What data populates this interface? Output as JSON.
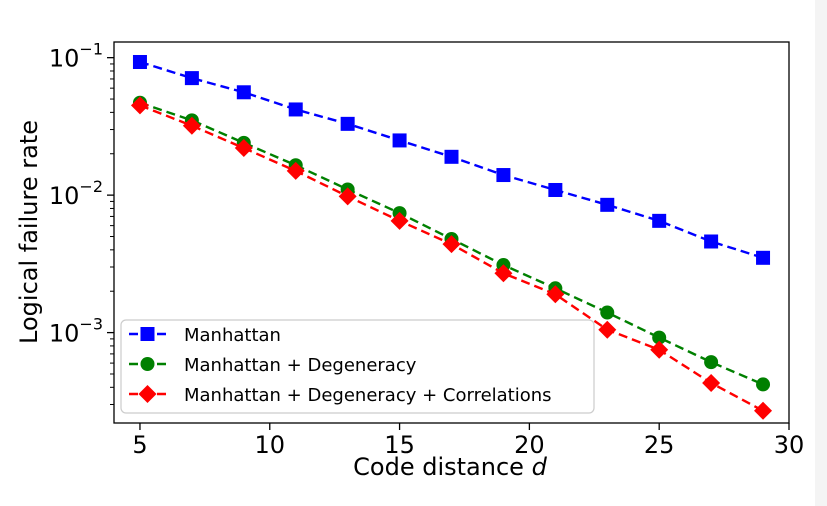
{
  "chart_data": {
    "type": "line",
    "xlabel": "Code distance",
    "xlabel_var": "d",
    "ylabel": "Logical failure rate",
    "xlim": [
      4,
      30
    ],
    "ylim": [
      0.00022,
      0.13
    ],
    "yscale": "log",
    "x_ticks": [
      5,
      10,
      15,
      20,
      25,
      30
    ],
    "y_ticks": [
      {
        "value": 0.001,
        "base": "10",
        "exp": "−3"
      },
      {
        "value": 0.01,
        "base": "10",
        "exp": "−2"
      },
      {
        "value": 0.1,
        "base": "10",
        "exp": "−1"
      }
    ],
    "grid": false,
    "legend_position": "lower-left",
    "x": [
      5,
      7,
      9,
      11,
      13,
      15,
      17,
      19,
      21,
      23,
      25,
      27,
      29
    ],
    "series": [
      {
        "name": "Manhattan",
        "color": "#0000ff",
        "marker": "square",
        "values": [
          0.093,
          0.071,
          0.056,
          0.042,
          0.033,
          0.025,
          0.019,
          0.014,
          0.0109,
          0.0085,
          0.0065,
          0.0046,
          0.0035
        ]
      },
      {
        "name": "Manhattan + Degeneracy",
        "color": "#008000",
        "marker": "circle",
        "values": [
          0.047,
          0.035,
          0.024,
          0.0165,
          0.011,
          0.0074,
          0.0048,
          0.0031,
          0.0021,
          0.0014,
          0.00092,
          0.00061,
          0.00042
        ]
      },
      {
        "name": "Manhattan + Degeneracy + Correlations",
        "color": "#ff0000",
        "marker": "diamond",
        "values": [
          0.045,
          0.032,
          0.022,
          0.015,
          0.0098,
          0.0065,
          0.0044,
          0.0027,
          0.0019,
          0.00105,
          0.00075,
          0.00043,
          0.00027
        ]
      }
    ]
  }
}
